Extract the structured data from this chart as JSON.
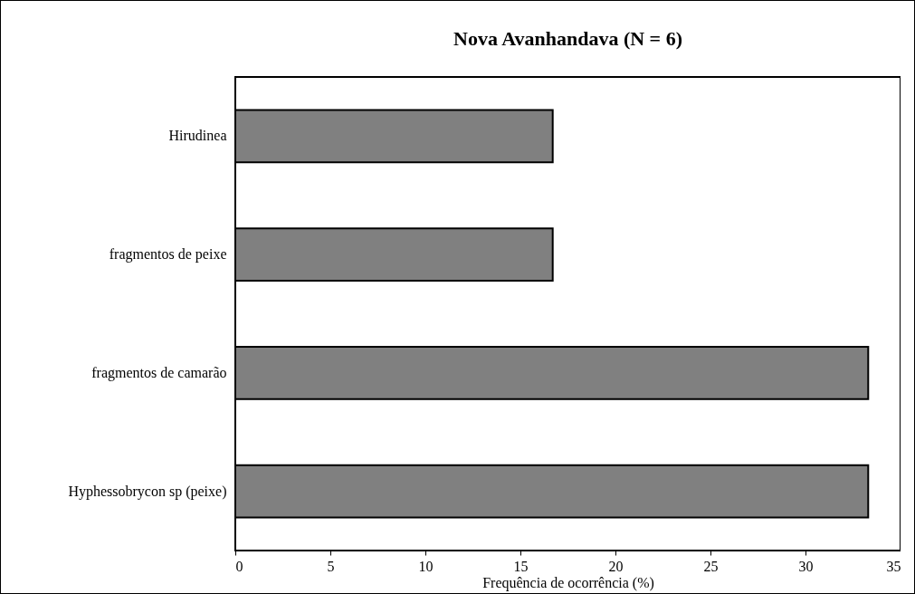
{
  "chart_data": {
    "type": "bar",
    "orientation": "horizontal",
    "title": "Nova Avanhandava (N = 6)",
    "xlabel": "Frequência de ocorrência (%)",
    "categories": [
      "Hirudinea",
      "fragmentos de peixe",
      "fragmentos de camarão",
      "Hyphessobrycon sp (peixe)"
    ],
    "values": [
      16.7,
      16.7,
      33.3,
      33.3
    ],
    "color": "#808080",
    "xlim": [
      0,
      35
    ],
    "xticks": [
      0,
      5,
      10,
      15,
      20,
      25,
      30,
      35
    ]
  }
}
